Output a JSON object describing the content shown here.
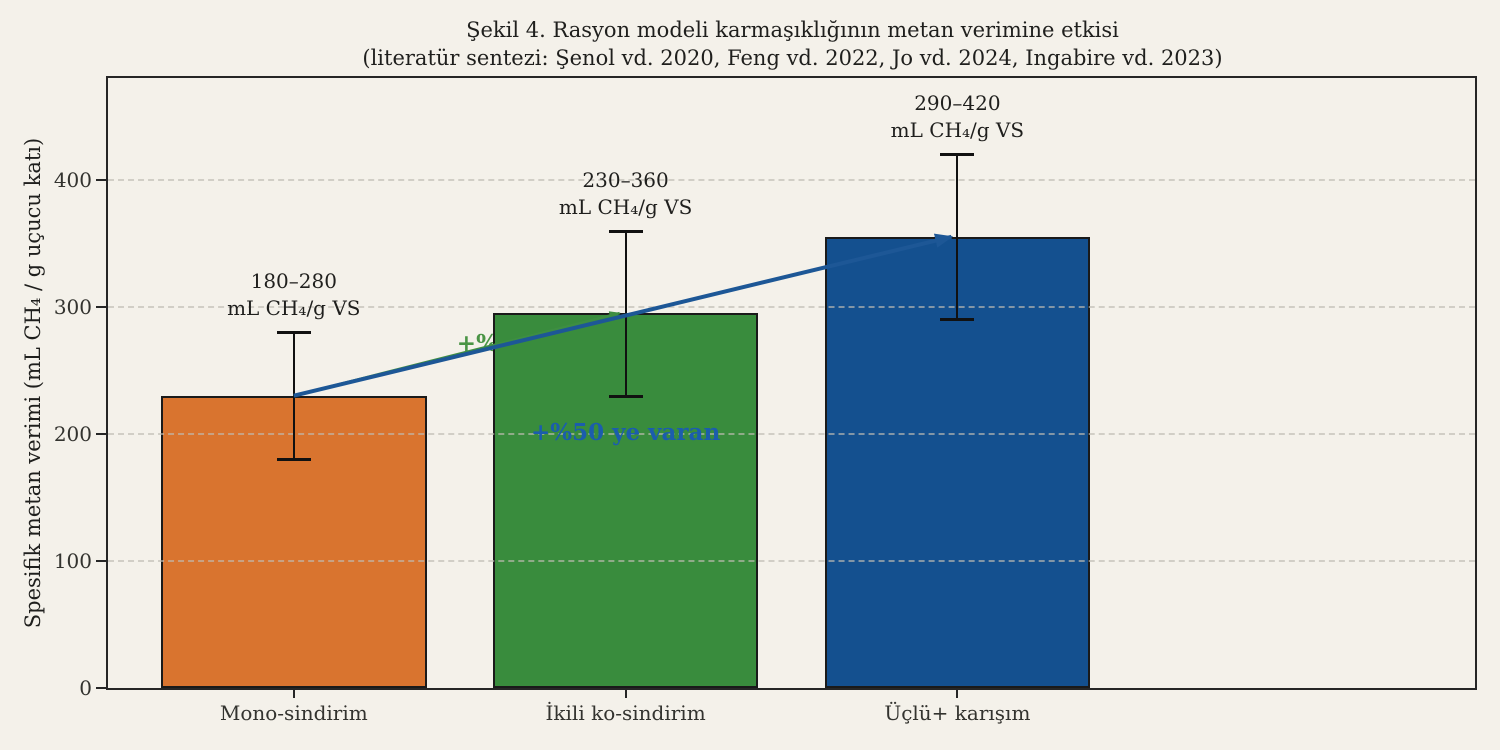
{
  "chart_data": {
    "type": "bar",
    "title": "Şekil 4. Rasyon modeli karmaşıklığının metan verimine etkisi",
    "subtitle": "(literatür sentezi: Şenol vd. 2020, Feng vd. 2022, Jo vd. 2024, Ingabire vd. 2023)",
    "ylabel": "Spesifik metan verimi (mL CH₄ / g uçucu katı)",
    "xlabel": "",
    "categories": [
      "Mono-sindirim",
      "İkili ko-sindirim",
      "Üçlü+ karışım"
    ],
    "values": [
      230,
      295,
      355
    ],
    "error_low": [
      180,
      230,
      290
    ],
    "error_high": [
      280,
      360,
      420
    ],
    "bar_colors": [
      "#d9742f",
      "#398c3d",
      "#14508f"
    ],
    "bar_range_labels": [
      {
        "line1": "180–280",
        "line2": "mL CH₄/g VS"
      },
      {
        "line1": "230–360",
        "line2": "mL CH₄/g VS"
      },
      {
        "line1": "290–420",
        "line2": "mL CH₄/g VS"
      }
    ],
    "ytick_values": [
      0,
      100,
      200,
      300,
      400
    ],
    "ylim": [
      0,
      480
    ],
    "grid": "dashed-horizontal",
    "legend": "none",
    "annotations": [
      {
        "text": "+%25-30",
        "text_color": "#4a9445",
        "arrow_color": "#3e8e42",
        "from_category": "Mono-sindirim",
        "to_category": "İkili ko-sindirim"
      },
      {
        "text": "+%50 ye varan",
        "text_color": "#1b5dad",
        "arrow_color": "#1d5796",
        "from_category": "Mono-sindirim",
        "to_category": "Üçlü+ karışım"
      }
    ]
  },
  "colors": {
    "background": "#f4f1ea",
    "spine": "#262626",
    "bar_edge": "#1a1a1a",
    "grid": "#bebcb2",
    "title_text": "#1f1f1d",
    "tick_text": "#33332f"
  }
}
